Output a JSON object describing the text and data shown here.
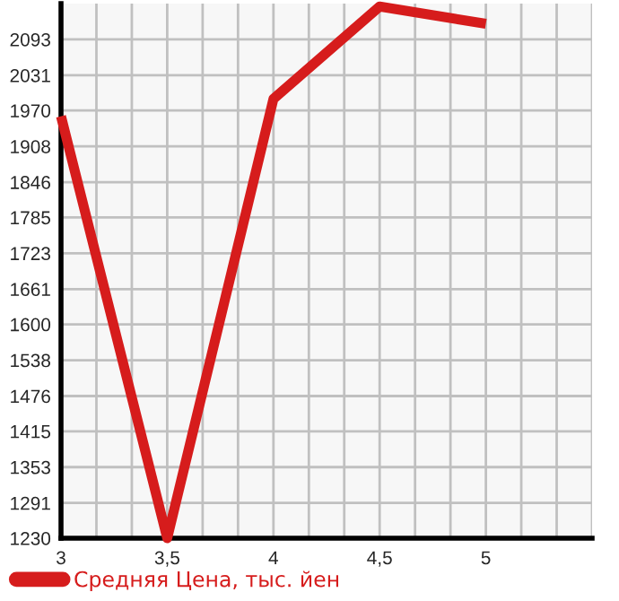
{
  "chart_data": {
    "type": "line",
    "x": [
      3,
      3.5,
      4,
      4.5,
      5
    ],
    "series": [
      {
        "name": "Средняя Цена, тыс. йен",
        "color": "#d61c1c",
        "values": [
          1960,
          1230,
          1990,
          2150,
          2120
        ]
      }
    ],
    "xlim": [
      3,
      5.5
    ],
    "xticks": [
      3,
      {
        "value": 3.1667,
        "label": null
      },
      {
        "value": 3.3333,
        "label": null
      },
      {
        "value": 3.5,
        "label": "3,5"
      },
      {
        "value": 3.6667,
        "label": null
      },
      {
        "value": 3.8333,
        "label": null
      },
      4,
      {
        "value": 4.1667,
        "label": null
      },
      {
        "value": 4.3333,
        "label": null
      },
      {
        "value": 4.5,
        "label": "4,5"
      },
      {
        "value": 4.6667,
        "label": null
      },
      {
        "value": 4.8333,
        "label": null
      },
      5,
      {
        "value": 5.1667,
        "label": null
      },
      {
        "value": 5.3333,
        "label": null
      },
      {
        "value": 5.5,
        "label": null
      }
    ],
    "ylim": [
      1230,
      2155
    ],
    "yticks": [
      1230,
      1291,
      1353,
      1415,
      1476,
      1538,
      1600,
      1661,
      1723,
      1785,
      1846,
      1908,
      1970,
      2031,
      2093
    ],
    "grid": true,
    "legend": "bottom",
    "marker": "none",
    "line_style": "solid"
  }
}
